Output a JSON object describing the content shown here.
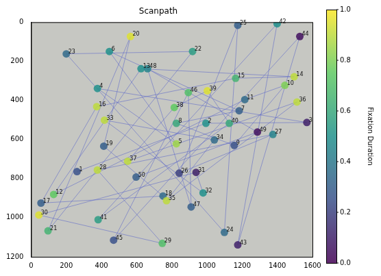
{
  "chart_data": {
    "type": "scatter",
    "title": "Scanpath",
    "marker": "circle",
    "grid": false,
    "labels": [
      "1",
      "2",
      "3",
      "4",
      "5",
      "6",
      "7",
      "8",
      "9",
      "10",
      "11",
      "12",
      "13",
      "14",
      "15",
      "16",
      "17",
      "18",
      "19",
      "20",
      "21",
      "22",
      "23",
      "24",
      "25",
      "26",
      "27",
      "28",
      "29",
      "30",
      "31",
      "32",
      "33",
      "34",
      "35",
      "36",
      "37",
      "38",
      "39",
      "40",
      "41",
      "42",
      "43",
      "44",
      "45",
      "46",
      "47",
      "48",
      "49",
      "50"
    ],
    "x": [
      261,
      994,
      1568,
      377,
      826,
      445,
      1183,
      826,
      1155,
      1443,
      1215,
      128,
      625,
      1496,
      1163,
      373,
      56,
      750,
      413,
      565,
      96,
      918,
      200,
      1099,
      1175,
      842,
      1375,
      377,
      746,
      44,
      938,
      978,
      417,
      1042,
      770,
      1512,
      549,
      814,
      1002,
      1127,
      381,
      1399,
      1175,
      1528,
      469,
      894,
      910,
      662,
      1287,
      597
    ],
    "y": [
      764,
      517,
      513,
      339,
      622,
      150,
      453,
      517,
      630,
      323,
      396,
      881,
      238,
      279,
      287,
      432,
      925,
      889,
      634,
      73,
      1067,
      150,
      162,
      1075,
      16,
      772,
      574,
      756,
      1131,
      986,
      768,
      873,
      501,
      602,
      913,
      408,
      711,
      436,
      351,
      517,
      1010,
      8,
      1139,
      73,
      1115,
      360,
      945,
      238,
      562,
      792
    ],
    "durations": [
      0.25,
      0.5,
      0.1,
      0.5,
      0.85,
      0.5,
      0.3,
      0.6,
      0.25,
      0.8,
      0.35,
      0.75,
      0.5,
      0.9,
      0.65,
      0.9,
      0.3,
      0.35,
      0.3,
      0.95,
      0.65,
      0.55,
      0.35,
      0.35,
      0.3,
      0.2,
      0.45,
      0.9,
      0.7,
      0.95,
      0.1,
      0.5,
      0.9,
      0.35,
      0.9,
      0.9,
      0.9,
      0.75,
      0.95,
      0.6,
      0.55,
      0.5,
      0.1,
      0.05,
      0.25,
      0.7,
      0.3,
      0.45,
      0.05,
      0.3
    ],
    "xlim": [
      0,
      1600
    ],
    "xticks": [
      0,
      200,
      400,
      600,
      800,
      1000,
      1200,
      1400,
      1600
    ],
    "ylim": [
      1200,
      0
    ],
    "yticks": [
      0,
      200,
      400,
      600,
      800,
      1000,
      1200
    ],
    "colorbar": {
      "label": "Fixation Duration",
      "range": [
        0,
        1
      ],
      "ticks": [
        {
          "value": 0,
          "label": "0.0"
        },
        {
          "value": 0.2,
          "label": "0.2"
        },
        {
          "value": 0.4,
          "label": "0.4"
        },
        {
          "value": 0.6,
          "label": "0.6"
        },
        {
          "value": 0.8,
          "label": "0.8"
        },
        {
          "value": 1,
          "label": "1.0"
        }
      ]
    }
  }
}
